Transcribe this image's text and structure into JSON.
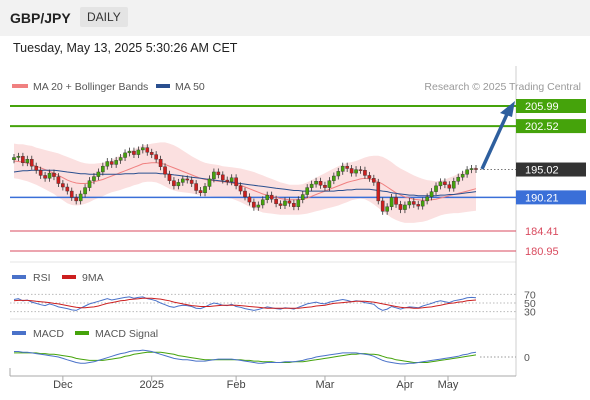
{
  "header": {
    "pair": "GBP/JPY",
    "timeframe": "DAILY"
  },
  "timestamp": "Tuesday, May 13, 2025 5:30:26 AM CET",
  "price_panel": {
    "legend": [
      {
        "label": "MA 20 + Bollinger Bands",
        "color": "#f08080"
      },
      {
        "label": "MA 50",
        "color": "#2a4f8f"
      }
    ],
    "credit": "Research © 2025 Trading Central"
  },
  "rsi_panel": {
    "legend": [
      {
        "label": "RSI",
        "color": "#4a72c9"
      },
      {
        "label": "9MA",
        "color": "#cc1f1f"
      }
    ]
  },
  "macd_panel": {
    "legend": [
      {
        "label": "MACD",
        "color": "#4a72c9"
      },
      {
        "label": "MACD Signal",
        "color": "#45a30b"
      }
    ]
  },
  "colors": {
    "resistance": "#45a30b",
    "pivot": "#3a6fd8",
    "support": "#d94b5f",
    "current": "#333333",
    "arrow": "#2e5f9e",
    "candle_up": "#45a30b",
    "candle_down": "#cc1f1f",
    "band_fill": "#fbe0e0"
  },
  "chart_data": [
    {
      "type": "candlestick",
      "ylim": [
        178.5,
        207.5
      ],
      "x_ticks": [
        "Dec",
        "2025",
        "Feb",
        "Mar",
        "Apr",
        "May"
      ],
      "levels": [
        {
          "label": "205.99",
          "value": 205.99,
          "kind": "resistance"
        },
        {
          "label": "202.52",
          "value": 202.52,
          "kind": "resistance"
        },
        {
          "label": "195.02",
          "value": 195.02,
          "kind": "current"
        },
        {
          "label": "190.21",
          "value": 190.21,
          "kind": "pivot"
        },
        {
          "label": "184.41",
          "value": 184.41,
          "kind": "support"
        },
        {
          "label": "180.95",
          "value": 180.95,
          "kind": "support"
        }
      ],
      "close": [
        197.1,
        197.3,
        196.2,
        196.8,
        195.6,
        194.9,
        194.0,
        193.5,
        194.4,
        193.8,
        192.6,
        192.0,
        191.3,
        190.2,
        189.6,
        190.8,
        191.9,
        193.1,
        193.8,
        194.6,
        195.6,
        196.4,
        195.9,
        196.6,
        197.1,
        197.9,
        198.2,
        197.6,
        198.4,
        198.8,
        198.0,
        197.6,
        196.8,
        195.5,
        194.2,
        193.1,
        192.2,
        192.8,
        193.4,
        193.2,
        192.6,
        191.4,
        191.0,
        192.1,
        193.4,
        194.6,
        194.1,
        193.2,
        192.9,
        193.6,
        192.2,
        191.3,
        190.3,
        189.4,
        188.5,
        188.9,
        189.8,
        190.6,
        189.9,
        189.1,
        188.8,
        189.6,
        189.2,
        188.6,
        189.8,
        190.7,
        191.9,
        192.5,
        193.0,
        192.3,
        191.9,
        193.1,
        193.9,
        194.7,
        195.6,
        195.2,
        194.4,
        195.0,
        194.9,
        194.0,
        193.5,
        192.8,
        189.6,
        187.8,
        188.6,
        190.2,
        189.0,
        188.1,
        188.9,
        189.5,
        189.0,
        188.7,
        189.6,
        190.3,
        191.2,
        192.2,
        192.9,
        192.4,
        191.8,
        193.0,
        193.7,
        194.2,
        195.0,
        195.2,
        195.02
      ],
      "ma20": [
        196.5,
        196.4,
        196.3,
        196.1,
        195.9,
        195.6,
        195.3,
        195.0,
        194.7,
        194.4,
        194.0,
        193.6,
        193.2,
        192.9,
        192.7,
        192.6,
        192.6,
        192.7,
        192.9,
        193.1,
        193.3,
        193.6,
        193.9,
        194.2,
        194.5,
        194.8,
        195.1,
        195.4,
        195.7,
        196.0,
        196.1,
        196.2,
        196.2,
        196.1,
        195.9,
        195.6,
        195.3,
        195.0,
        194.7,
        194.4,
        194.1,
        193.8,
        193.5,
        193.3,
        193.2,
        193.1,
        193.0,
        192.9,
        192.8,
        192.7,
        192.5,
        192.3,
        192.0,
        191.7,
        191.4,
        191.1,
        190.8,
        190.6,
        190.4,
        190.2,
        190.0,
        189.9,
        189.8,
        189.8,
        189.8,
        189.9,
        190.1,
        190.4,
        190.7,
        191.0,
        191.3,
        191.6,
        191.9,
        192.2,
        192.5,
        192.8,
        193.0,
        193.2,
        193.4,
        193.5,
        193.4,
        193.2,
        192.9,
        192.5,
        192.0,
        191.5,
        191.0,
        190.6,
        190.3,
        190.1,
        189.9,
        189.8,
        189.7,
        189.7,
        189.8,
        189.9,
        190.1,
        190.3,
        190.5,
        190.7,
        190.9,
        191.1,
        191.3,
        191.5,
        191.7
      ],
      "ma50": [
        194.6,
        194.7,
        194.8,
        194.8,
        194.9,
        194.9,
        194.9,
        194.9,
        194.9,
        194.9,
        194.8,
        194.7,
        194.6,
        194.5,
        194.4,
        194.3,
        194.3,
        194.2,
        194.2,
        194.2,
        194.2,
        194.2,
        194.2,
        194.2,
        194.2,
        194.3,
        194.3,
        194.3,
        194.4,
        194.4,
        194.4,
        194.4,
        194.4,
        194.3,
        194.3,
        194.2,
        194.1,
        194.0,
        193.9,
        193.8,
        193.7,
        193.6,
        193.5,
        193.4,
        193.3,
        193.2,
        193.1,
        193.0,
        192.9,
        192.8,
        192.7,
        192.6,
        192.5,
        192.4,
        192.3,
        192.2,
        192.1,
        192.0,
        191.9,
        191.8,
        191.7,
        191.6,
        191.5,
        191.4,
        191.4,
        191.3,
        191.3,
        191.3,
        191.3,
        191.3,
        191.3,
        191.3,
        191.3,
        191.4,
        191.4,
        191.5,
        191.5,
        191.6,
        191.6,
        191.6,
        191.6,
        191.5,
        191.4,
        191.3,
        191.2,
        191.0,
        190.9,
        190.8,
        190.7,
        190.6,
        190.6,
        190.5,
        190.5,
        190.5,
        190.5,
        190.5,
        190.6,
        190.6,
        190.7,
        190.7,
        190.8,
        190.9,
        191.0,
        191.1,
        191.2
      ],
      "bb_width": [
        3.0,
        3.0,
        3.1,
        3.1,
        3.2,
        3.2,
        3.3,
        3.4,
        3.5,
        3.6,
        3.8,
        3.9,
        4.0,
        4.0,
        3.9,
        3.7,
        3.5,
        3.3,
        3.1,
        3.0,
        2.9,
        2.8,
        2.8,
        2.9,
        3.0,
        3.0,
        3.1,
        3.1,
        3.2,
        3.2,
        3.2,
        3.3,
        3.4,
        3.6,
        3.8,
        3.9,
        3.9,
        3.8,
        3.6,
        3.4,
        3.2,
        3.1,
        3.0,
        2.9,
        2.8,
        2.8,
        2.8,
        2.7,
        2.7,
        2.7,
        2.8,
        2.9,
        3.0,
        3.1,
        3.2,
        3.2,
        3.2,
        3.1,
        3.0,
        2.9,
        2.8,
        2.7,
        2.6,
        2.6,
        2.6,
        2.6,
        2.7,
        2.8,
        2.9,
        3.0,
        3.1,
        3.2,
        3.3,
        3.4,
        3.4,
        3.4,
        3.3,
        3.3,
        3.4,
        3.6,
        3.9,
        4.2,
        4.5,
        4.7,
        4.8,
        4.8,
        4.7,
        4.6,
        4.5,
        4.3,
        4.1,
        3.9,
        3.7,
        3.5,
        3.3,
        3.1,
        3.0,
        3.0,
        3.1,
        3.2,
        3.4,
        3.5,
        3.6,
        3.7,
        3.8
      ]
    },
    {
      "type": "line",
      "series_names": [
        "RSI",
        "9MA"
      ],
      "y_ticks": [
        70,
        50,
        30
      ],
      "ylim": [
        20,
        80
      ],
      "rsi": [
        58,
        60,
        55,
        57,
        52,
        49,
        46,
        44,
        48,
        45,
        41,
        39,
        37,
        34,
        33,
        38,
        43,
        48,
        51,
        54,
        57,
        60,
        57,
        59,
        61,
        63,
        64,
        61,
        63,
        64,
        60,
        58,
        55,
        50,
        46,
        42,
        40,
        43,
        45,
        44,
        42,
        38,
        37,
        41,
        46,
        50,
        48,
        45,
        44,
        47,
        42,
        40,
        37,
        35,
        33,
        35,
        38,
        41,
        39,
        37,
        36,
        39,
        38,
        36,
        40,
        44,
        48,
        50,
        52,
        49,
        48,
        52,
        54,
        56,
        58,
        56,
        53,
        55,
        54,
        51,
        49,
        47,
        38,
        33,
        36,
        42,
        39,
        36,
        39,
        41,
        40,
        39,
        43,
        46,
        49,
        53,
        55,
        53,
        51,
        55,
        57,
        59,
        62,
        63,
        62
      ],
      "ma9": [
        55,
        56,
        56,
        56,
        55,
        54,
        53,
        52,
        51,
        49,
        48,
        46,
        44,
        42,
        40,
        39,
        39,
        40,
        41,
        43,
        46,
        49,
        51,
        53,
        55,
        56,
        58,
        59,
        60,
        61,
        61,
        61,
        60,
        59,
        57,
        55,
        52,
        50,
        48,
        46,
        44,
        43,
        42,
        42,
        42,
        43,
        44,
        45,
        45,
        45,
        45,
        44,
        43,
        42,
        41,
        40,
        39,
        38,
        38,
        38,
        38,
        38,
        38,
        38,
        38,
        39,
        40,
        41,
        43,
        44,
        45,
        47,
        49,
        50,
        51,
        52,
        53,
        54,
        54,
        54,
        53,
        52,
        50,
        48,
        46,
        44,
        42,
        40,
        39,
        39,
        38,
        38,
        39,
        40,
        41,
        43,
        45,
        47,
        49,
        50,
        52,
        53,
        55,
        56,
        57
      ]
    },
    {
      "type": "line",
      "series_names": [
        "MACD",
        "MACD Signal"
      ],
      "y_ticks": [
        0
      ],
      "ylim": [
        -1.6,
        1.6
      ],
      "macd": [
        0.8,
        0.8,
        0.7,
        0.7,
        0.6,
        0.5,
        0.4,
        0.3,
        0.2,
        0.1,
        0.0,
        -0.2,
        -0.4,
        -0.6,
        -0.8,
        -0.9,
        -0.9,
        -0.8,
        -0.7,
        -0.5,
        -0.3,
        -0.1,
        0.1,
        0.3,
        0.5,
        0.6,
        0.8,
        0.9,
        0.9,
        1.0,
        0.9,
        0.8,
        0.6,
        0.4,
        0.2,
        0.0,
        -0.2,
        -0.3,
        -0.4,
        -0.4,
        -0.5,
        -0.6,
        -0.6,
        -0.6,
        -0.5,
        -0.4,
        -0.3,
        -0.3,
        -0.3,
        -0.3,
        -0.4,
        -0.5,
        -0.6,
        -0.7,
        -0.8,
        -0.9,
        -0.9,
        -0.8,
        -0.8,
        -0.8,
        -0.8,
        -0.7,
        -0.7,
        -0.7,
        -0.6,
        -0.5,
        -0.3,
        -0.2,
        0.0,
        0.1,
        0.2,
        0.3,
        0.4,
        0.5,
        0.6,
        0.6,
        0.6,
        0.6,
        0.5,
        0.4,
        0.3,
        0.1,
        -0.2,
        -0.5,
        -0.7,
        -0.8,
        -0.9,
        -1.0,
        -1.0,
        -0.9,
        -0.9,
        -0.8,
        -0.7,
        -0.6,
        -0.5,
        -0.4,
        -0.3,
        -0.2,
        -0.1,
        0.0,
        0.1,
        0.3,
        0.4,
        0.6,
        0.7
      ],
      "signal": [
        0.6,
        0.6,
        0.6,
        0.6,
        0.6,
        0.6,
        0.5,
        0.5,
        0.4,
        0.4,
        0.3,
        0.2,
        0.1,
        0.0,
        -0.2,
        -0.3,
        -0.4,
        -0.5,
        -0.5,
        -0.5,
        -0.5,
        -0.4,
        -0.3,
        -0.2,
        -0.1,
        0.1,
        0.2,
        0.4,
        0.5,
        0.6,
        0.7,
        0.7,
        0.7,
        0.7,
        0.6,
        0.5,
        0.4,
        0.2,
        0.1,
        0.0,
        -0.1,
        -0.2,
        -0.3,
        -0.4,
        -0.4,
        -0.4,
        -0.4,
        -0.4,
        -0.4,
        -0.4,
        -0.4,
        -0.4,
        -0.5,
        -0.5,
        -0.6,
        -0.6,
        -0.7,
        -0.7,
        -0.7,
        -0.8,
        -0.8,
        -0.8,
        -0.8,
        -0.7,
        -0.7,
        -0.7,
        -0.6,
        -0.5,
        -0.4,
        -0.3,
        -0.2,
        -0.1,
        0.0,
        0.1,
        0.2,
        0.3,
        0.4,
        0.4,
        0.5,
        0.5,
        0.4,
        0.4,
        0.3,
        0.1,
        -0.1,
        -0.2,
        -0.4,
        -0.5,
        -0.6,
        -0.7,
        -0.8,
        -0.8,
        -0.8,
        -0.8,
        -0.7,
        -0.6,
        -0.5,
        -0.4,
        -0.3,
        -0.2,
        -0.1,
        0.0,
        0.1,
        0.2,
        0.3
      ]
    }
  ]
}
